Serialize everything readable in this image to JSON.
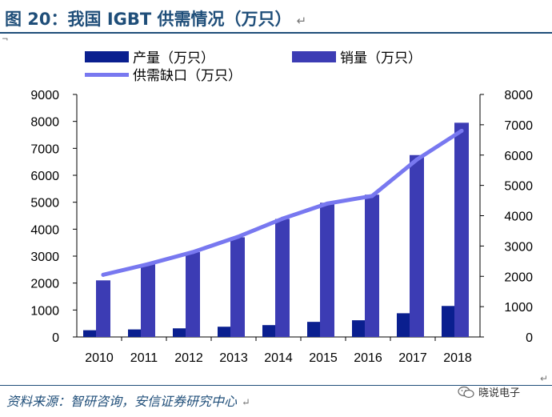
{
  "header": {
    "figure_label": "图 20：",
    "title": "我国 IGBT 供需情况（万只）",
    "return_mark": "↵"
  },
  "source": {
    "text": "资料来源：智研咨询，安信证券研究中心",
    "return_mark": "↵"
  },
  "watermark": {
    "text": "晓说电子",
    "icon": "wechat-icon"
  },
  "colors": {
    "production": "#0a1f8f",
    "sales": "#3c3cb4",
    "gap": "#7878f0",
    "rule": "#1f4e79"
  },
  "chart_data": {
    "type": "bar",
    "categories": [
      "2010",
      "2011",
      "2012",
      "2013",
      "2014",
      "2015",
      "2016",
      "2017",
      "2018"
    ],
    "series": [
      {
        "name": "产量（万只）",
        "kind": "bar",
        "axis": "left",
        "values": [
          250,
          280,
          320,
          380,
          440,
          560,
          620,
          880,
          1150
        ]
      },
      {
        "name": "销量（万只）",
        "kind": "bar",
        "axis": "left",
        "values": [
          2100,
          2700,
          3150,
          3700,
          4380,
          4980,
          5280,
          6750,
          7950
        ]
      },
      {
        "name": "供需缺口（万只）",
        "kind": "line",
        "axis": "right",
        "values": [
          2050,
          2400,
          2800,
          3300,
          3900,
          4400,
          4650,
          5850,
          6800
        ]
      }
    ],
    "left_axis": {
      "min": 0,
      "max": 9000,
      "step": 1000,
      "ticks": [
        "0",
        "1000",
        "2000",
        "3000",
        "4000",
        "5000",
        "6000",
        "7000",
        "8000",
        "9000"
      ]
    },
    "right_axis": {
      "min": 0,
      "max": 8000,
      "step": 1000,
      "ticks": [
        "0",
        "1000",
        "2000",
        "3000",
        "4000",
        "5000",
        "6000",
        "7000",
        "8000"
      ]
    },
    "legend": [
      "产量（万只）",
      "销量（万只）",
      "供需缺口（万只）"
    ],
    "legend_position": "top",
    "grid": false
  }
}
